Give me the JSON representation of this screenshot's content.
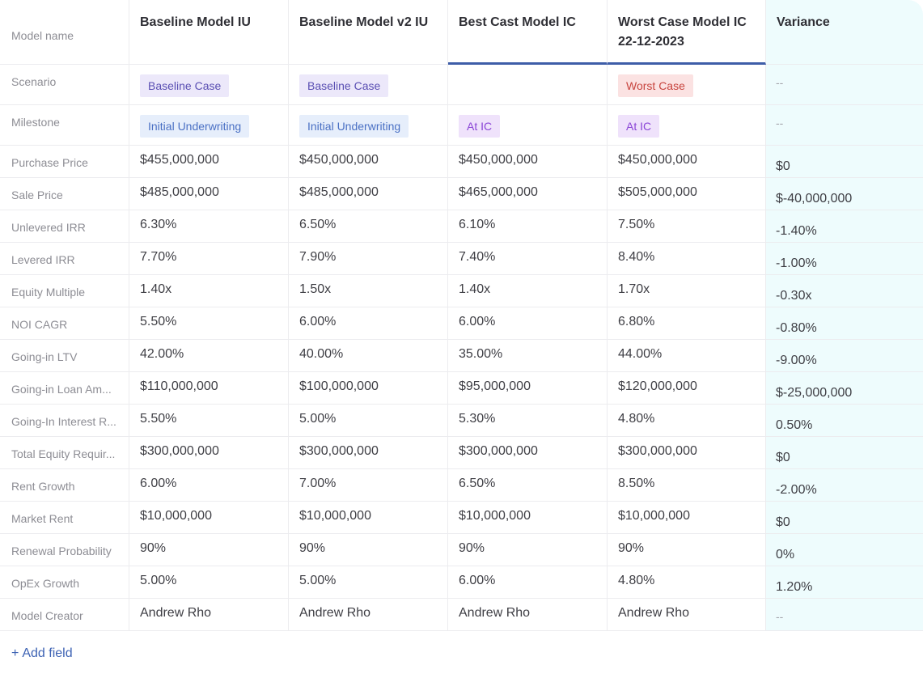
{
  "header": {
    "row_label": "Model name",
    "columns": [
      "Baseline Model IU",
      "Baseline Model v2 IU",
      "Best Cast Model IC",
      "Worst Case Model IC 22-12-2023",
      "Variance"
    ]
  },
  "scenario": {
    "label": "Scenario",
    "tags": [
      "Baseline Case",
      "Baseline Case",
      "",
      "Worst Case"
    ],
    "variance": "--"
  },
  "milestone": {
    "label": "Milestone",
    "tags": [
      "Initial Underwriting",
      "Initial Underwriting",
      "At IC",
      "At IC"
    ],
    "variance": "--"
  },
  "rows": [
    {
      "label": "Purchase Price",
      "values": [
        "$455,000,000",
        "$450,000,000",
        "$450,000,000",
        "$450,000,000"
      ],
      "variance": "$0"
    },
    {
      "label": "Sale Price",
      "values": [
        "$485,000,000",
        "$485,000,000",
        "$465,000,000",
        "$505,000,000"
      ],
      "variance": "$-40,000,000"
    },
    {
      "label": "Unlevered IRR",
      "values": [
        "6.30%",
        "6.50%",
        "6.10%",
        "7.50%"
      ],
      "variance": "-1.40%"
    },
    {
      "label": "Levered IRR",
      "values": [
        "7.70%",
        "7.90%",
        "7.40%",
        "8.40%"
      ],
      "variance": "-1.00%"
    },
    {
      "label": "Equity Multiple",
      "values": [
        "1.40x",
        "1.50x",
        "1.40x",
        "1.70x"
      ],
      "variance": "-0.30x"
    },
    {
      "label": "NOI CAGR",
      "values": [
        "5.50%",
        "6.00%",
        "6.00%",
        "6.80%"
      ],
      "variance": "-0.80%"
    },
    {
      "label": "Going-in LTV",
      "values": [
        "42.00%",
        "40.00%",
        "35.00%",
        "44.00%"
      ],
      "variance": "-9.00%"
    },
    {
      "label": "Going-in Loan Am...",
      "values": [
        "$110,000,000",
        "$100,000,000",
        "$95,000,000",
        "$120,000,000"
      ],
      "variance": "$-25,000,000"
    },
    {
      "label": "Going-In Interest R...",
      "values": [
        "5.50%",
        "5.00%",
        "5.30%",
        "4.80%"
      ],
      "variance": "0.50%"
    },
    {
      "label": "Total Equity Requir...",
      "values": [
        "$300,000,000",
        "$300,000,000",
        "$300,000,000",
        "$300,000,000"
      ],
      "variance": "$0"
    },
    {
      "label": "Rent Growth",
      "values": [
        "6.00%",
        "7.00%",
        "6.50%",
        "8.50%"
      ],
      "variance": "-2.00%"
    },
    {
      "label": "Market Rent",
      "values": [
        "$10,000,000",
        "$10,000,000",
        "$10,000,000",
        "$10,000,000"
      ],
      "variance": "$0"
    },
    {
      "label": "Renewal Probability",
      "values": [
        "90%",
        "90%",
        "90%",
        "90%"
      ],
      "variance": "0%"
    },
    {
      "label": "OpEx Growth",
      "values": [
        "5.00%",
        "5.00%",
        "6.00%",
        "4.80%"
      ],
      "variance": "1.20%"
    },
    {
      "label": "Model Creator",
      "values": [
        "Andrew Rho",
        "Andrew Rho",
        "Andrew Rho",
        "Andrew Rho"
      ],
      "variance": "--"
    }
  ],
  "add_field": {
    "plus": "+",
    "label": "Add field"
  },
  "colors": {
    "accent": "#3e5da8",
    "variance_bg": "#eefcfd",
    "link": "#3e63b4"
  }
}
